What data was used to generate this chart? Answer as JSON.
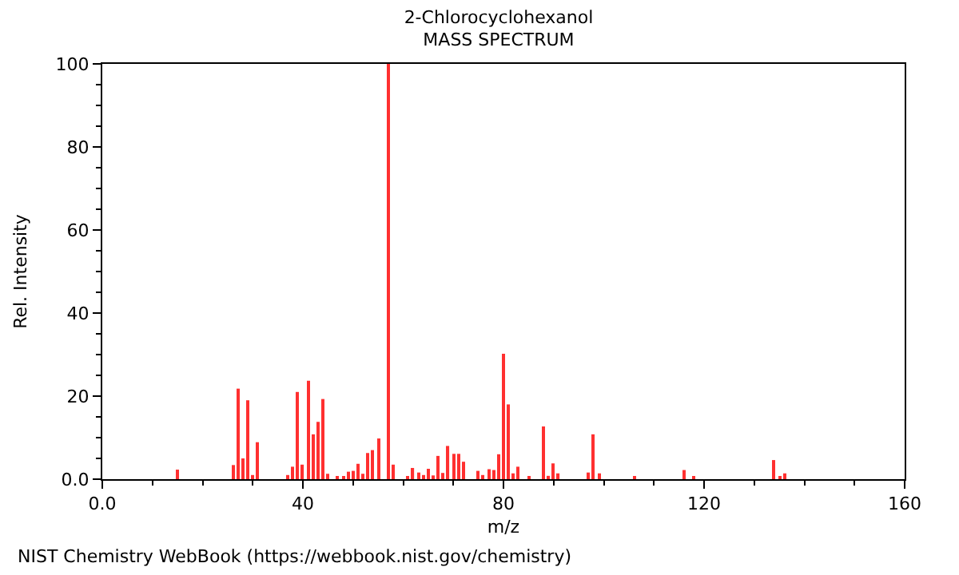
{
  "chart_data": {
    "type": "bar",
    "title": "2-Chlorocyclohexanol",
    "subtitle": "MASS SPECTRUM",
    "xlabel": "m/z",
    "ylabel": "Rel. Intensity",
    "x": [
      15,
      26,
      27,
      28,
      29,
      30,
      31,
      37,
      38,
      39,
      40,
      41,
      42,
      43,
      44,
      45,
      47,
      48,
      49,
      50,
      51,
      52,
      53,
      54,
      55,
      57,
      58,
      61,
      62,
      63,
      64,
      65,
      66,
      67,
      68,
      69,
      70,
      71,
      72,
      75,
      76,
      77,
      78,
      79,
      80,
      81,
      82,
      83,
      85,
      88,
      89,
      90,
      91,
      97,
      98,
      99,
      106,
      116,
      118,
      134,
      135,
      136
    ],
    "values": [
      2.3,
      3.4,
      21.8,
      5,
      19,
      1,
      8.9,
      1,
      3,
      21,
      3.5,
      23.7,
      10.8,
      13.8,
      19.3,
      1.3,
      0.4,
      0.4,
      1.8,
      2,
      3.7,
      1.3,
      6.3,
      7,
      9.8,
      100,
      3.5,
      0.5,
      2.7,
      1.6,
      1,
      2.5,
      0.9,
      5.6,
      1.5,
      8,
      6.1,
      6.1,
      4.2,
      2,
      1,
      2.4,
      2.2,
      6,
      30.2,
      18,
      1.4,
      3,
      0.5,
      12.7,
      0.8,
      3.8,
      1.4,
      1.6,
      10.8,
      1.4,
      0.4,
      2.2,
      0.7,
      4.6,
      0.5,
      1.4
    ],
    "color": "#ff3030",
    "xlim": [
      0,
      160
    ],
    "xticks": [
      {
        "value": 0,
        "label": "0.0"
      },
      40,
      80,
      120,
      160
    ],
    "ylim": [
      0,
      100
    ],
    "yticks": [
      {
        "value": 0,
        "label": "0.0"
      },
      20,
      40,
      60,
      80,
      100
    ],
    "annotations": [
      "NIST Chemistry WebBook (https://webbook.nist.gov/chemistry)"
    ]
  }
}
